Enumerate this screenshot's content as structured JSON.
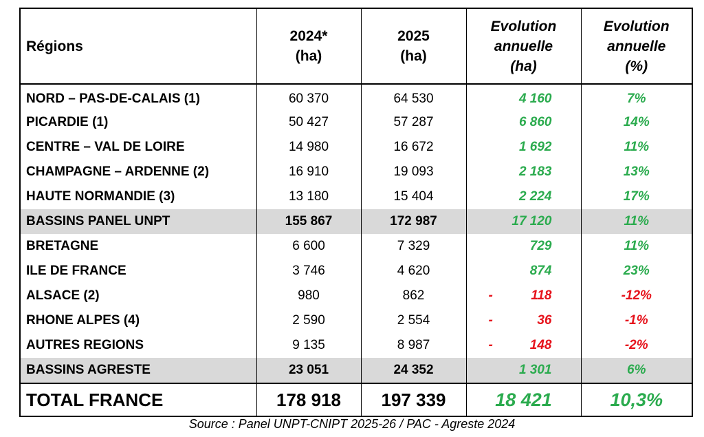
{
  "header": {
    "region": "Régions",
    "y2024": [
      "2024*",
      "(ha)"
    ],
    "y2025": [
      "2025",
      "(ha)"
    ],
    "evol_ha": [
      "Evolution",
      "annuelle",
      "(ha)"
    ],
    "evol_pct": [
      "Evolution",
      "annuelle",
      "(%)"
    ]
  },
  "rows": [
    {
      "region": "NORD – PAS-DE-CALAIS (1)",
      "y2024": "60 370",
      "y2025": "64 530",
      "evol_ha": "4 160",
      "evol_pct": "7%",
      "sign": "pos",
      "subtotal": false
    },
    {
      "region": "PICARDIE (1)",
      "y2024": "50 427",
      "y2025": "57 287",
      "evol_ha": "6 860",
      "evol_pct": "14%",
      "sign": "pos",
      "subtotal": false
    },
    {
      "region": "CENTRE – VAL DE LOIRE",
      "y2024": "14 980",
      "y2025": "16 672",
      "evol_ha": "1 692",
      "evol_pct": "11%",
      "sign": "pos",
      "subtotal": false
    },
    {
      "region": "CHAMPAGNE – ARDENNE (2)",
      "y2024": "16 910",
      "y2025": "19 093",
      "evol_ha": "2 183",
      "evol_pct": "13%",
      "sign": "pos",
      "subtotal": false
    },
    {
      "region": "HAUTE NORMANDIE (3)",
      "y2024": "13 180",
      "y2025": "15 404",
      "evol_ha": "2 224",
      "evol_pct": "17%",
      "sign": "pos",
      "subtotal": false
    },
    {
      "region": "BASSINS PANEL UNPT",
      "y2024": "155 867",
      "y2025": "172 987",
      "evol_ha": "17 120",
      "evol_pct": "11%",
      "sign": "pos",
      "subtotal": true
    },
    {
      "region": "BRETAGNE",
      "y2024": "6 600",
      "y2025": "7 329",
      "evol_ha": "729",
      "evol_pct": "11%",
      "sign": "pos",
      "subtotal": false
    },
    {
      "region": "ILE DE FRANCE",
      "y2024": "3 746",
      "y2025": "4 620",
      "evol_ha": "874",
      "evol_pct": "23%",
      "sign": "pos",
      "subtotal": false
    },
    {
      "region": "ALSACE (2)",
      "y2024": "980",
      "y2025": "862",
      "evol_ha": "118",
      "evol_pct": "-12%",
      "sign": "neg",
      "subtotal": false
    },
    {
      "region": "RHONE ALPES (4)",
      "y2024": "2 590",
      "y2025": "2 554",
      "evol_ha": "36",
      "evol_pct": "-1%",
      "sign": "neg",
      "subtotal": false
    },
    {
      "region": "AUTRES REGIONS",
      "y2024": "9 135",
      "y2025": "8 987",
      "evol_ha": "148",
      "evol_pct": "-2%",
      "sign": "neg",
      "subtotal": false
    },
    {
      "region": "BASSINS AGRESTE",
      "y2024": "23 051",
      "y2025": "24 352",
      "evol_ha": "1 301",
      "evol_pct": "6%",
      "sign": "pos",
      "subtotal": true
    }
  ],
  "neg_prefix": "-",
  "total": {
    "region": "TOTAL FRANCE",
    "y2024": "178 918",
    "y2025": "197 339",
    "evol_ha": "18 421",
    "evol_pct": "10,3%"
  },
  "source": "Source : Panel UNPT-CNIPT 2025-26 / PAC - Agreste 2024",
  "colors": {
    "positive": "#2bab4e",
    "negative": "#e6121b",
    "subtotal_bg": "#d9d9d9"
  }
}
